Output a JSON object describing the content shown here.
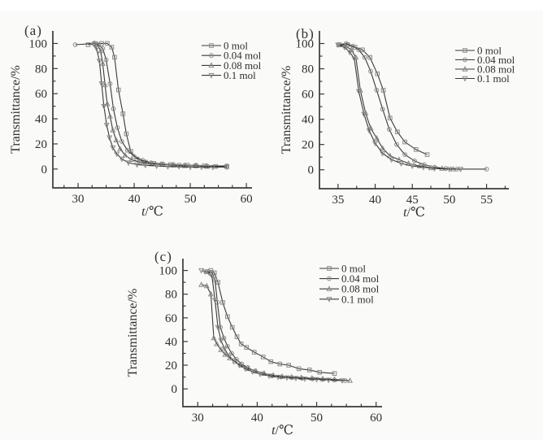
{
  "figure": {
    "background": "#fafaf9",
    "line_color": "#3a3a3a",
    "marker_color": "#8a8a8a",
    "text_color": "#2f2f2f"
  },
  "chart_data": [
    {
      "id": "a",
      "panel_label": "(a)",
      "type": "line",
      "title": "",
      "xlabel": {
        "italic": "t",
        "rest": "/℃"
      },
      "ylabel": "Transmittance/%",
      "xlim": [
        25.5,
        61
      ],
      "ylim": [
        -15,
        110
      ],
      "xticks": [
        30,
        40,
        50,
        60
      ],
      "xminor": [
        27.5,
        32.5,
        35,
        37.5,
        42.5,
        45,
        47.5,
        52.5,
        55,
        57.5
      ],
      "yticks": [
        0,
        20,
        40,
        60,
        80,
        100
      ],
      "yminor": [
        10,
        30,
        50,
        70,
        90
      ],
      "grid": false,
      "legend_position": "top-right",
      "series": [
        {
          "name": "0 mol",
          "marker": "square",
          "points": [
            [
              31.8,
              99
            ],
            [
              33.0,
              100
            ],
            [
              34.2,
              100
            ],
            [
              35.2,
              100
            ],
            [
              36.0,
              97
            ],
            [
              36.5,
              89
            ],
            [
              37.2,
              63
            ],
            [
              38.0,
              44
            ],
            [
              38.6,
              28
            ],
            [
              39.4,
              14
            ],
            [
              40.5,
              8
            ],
            [
              42.0,
              5.5
            ],
            [
              43.5,
              4.5
            ],
            [
              45.0,
              4
            ],
            [
              46.5,
              3.5
            ],
            [
              48.0,
              3
            ],
            [
              49.5,
              3
            ],
            [
              51.0,
              2.5
            ],
            [
              52.5,
              2.5
            ],
            [
              54.5,
              2
            ],
            [
              56.5,
              2
            ]
          ]
        },
        {
          "name": "0.04 mol",
          "marker": "circle",
          "points": [
            [
              29.5,
              99
            ],
            [
              32.8,
              100
            ],
            [
              33.6,
              99
            ],
            [
              34.4,
              96
            ],
            [
              35.0,
              87
            ],
            [
              35.7,
              68
            ],
            [
              36.3,
              48
            ],
            [
              37.0,
              33
            ],
            [
              37.8,
              22
            ],
            [
              38.8,
              15
            ],
            [
              40.0,
              10
            ],
            [
              41.5,
              7
            ],
            [
              43.0,
              5
            ],
            [
              45.0,
              4
            ],
            [
              47.0,
              3.5
            ],
            [
              49.0,
              3
            ],
            [
              51.0,
              3
            ],
            [
              53.0,
              2.5
            ],
            [
              56.5,
              2.5
            ]
          ]
        },
        {
          "name": "0.08 mol",
          "marker": "triangle-up",
          "points": [
            [
              32.9,
              100
            ],
            [
              33.5,
              99
            ],
            [
              34.0,
              94
            ],
            [
              34.4,
              84
            ],
            [
              34.8,
              67
            ],
            [
              35.2,
              52
            ],
            [
              35.7,
              42
            ],
            [
              36.2,
              31
            ],
            [
              36.8,
              23
            ],
            [
              37.5,
              16
            ],
            [
              38.4,
              11
            ],
            [
              39.5,
              7.5
            ],
            [
              41.0,
              5.5
            ],
            [
              43.0,
              4
            ],
            [
              45.0,
              3.5
            ],
            [
              47.0,
              3
            ],
            [
              49.0,
              2.5
            ],
            [
              51.0,
              2.5
            ],
            [
              53.0,
              2
            ],
            [
              56.5,
              2
            ]
          ]
        },
        {
          "name": "0.1 mol",
          "marker": "triangle-down",
          "points": [
            [
              32.9,
              99
            ],
            [
              33.3,
              96
            ],
            [
              33.8,
              86
            ],
            [
              34.2,
              68
            ],
            [
              34.6,
              50
            ],
            [
              35.1,
              35
            ],
            [
              35.6,
              25
            ],
            [
              36.2,
              17
            ],
            [
              36.9,
              12
            ],
            [
              37.8,
              8
            ],
            [
              39.0,
              5
            ],
            [
              40.5,
              3.5
            ],
            [
              42.0,
              3
            ],
            [
              44.0,
              2.5
            ],
            [
              46.0,
              2
            ],
            [
              48.0,
              2
            ],
            [
              50.0,
              1.5
            ],
            [
              52.0,
              1.5
            ],
            [
              54.0,
              1.5
            ],
            [
              56.5,
              1.5
            ]
          ]
        }
      ]
    },
    {
      "id": "b",
      "panel_label": "(b)",
      "type": "line",
      "title": "",
      "xlabel": {
        "italic": "t",
        "rest": "/℃"
      },
      "ylabel": "Transmittance/%",
      "xlim": [
        32.5,
        58
      ],
      "ylim": [
        -15,
        110
      ],
      "xticks": [
        35,
        40,
        45,
        50,
        55
      ],
      "xminor": [
        37.5,
        42.5,
        47.5,
        52.5,
        57.5
      ],
      "yticks": [
        0,
        20,
        40,
        60,
        80,
        100
      ],
      "yminor": [
        10,
        30,
        50,
        70,
        90
      ],
      "grid": false,
      "legend_position": "top-right",
      "series": [
        {
          "name": "0 mol",
          "marker": "square",
          "points": [
            [
              35.2,
              99
            ],
            [
              36.3,
              99
            ],
            [
              37.3,
              97
            ],
            [
              38.3,
              95
            ],
            [
              39.3,
              89
            ],
            [
              40.3,
              76
            ],
            [
              41.1,
              63
            ],
            [
              42.0,
              41
            ],
            [
              43.0,
              30
            ],
            [
              44.0,
              22
            ],
            [
              45.5,
              16
            ],
            [
              47.0,
              12
            ]
          ]
        },
        {
          "name": "0.04 mol",
          "marker": "circle",
          "points": [
            [
              35.1,
              99
            ],
            [
              36.1,
              100
            ],
            [
              37.0,
              98
            ],
            [
              37.8,
              95
            ],
            [
              38.6,
              89
            ],
            [
              39.4,
              78
            ],
            [
              40.2,
              63
            ],
            [
              41.0,
              48
            ],
            [
              41.9,
              32
            ],
            [
              42.9,
              20
            ],
            [
              44.0,
              12
            ],
            [
              45.3,
              7
            ],
            [
              46.6,
              4
            ],
            [
              48.0,
              2
            ],
            [
              49.5,
              1
            ],
            [
              51.0,
              0.5
            ],
            [
              55.0,
              0.5
            ]
          ]
        },
        {
          "name": "0.08 mol",
          "marker": "triangle-up",
          "points": [
            [
              35.1,
              99
            ],
            [
              36.0,
              98
            ],
            [
              36.8,
              95
            ],
            [
              37.4,
              89
            ],
            [
              38.0,
              63
            ],
            [
              38.7,
              45
            ],
            [
              39.4,
              33
            ],
            [
              40.2,
              25
            ],
            [
              41.0,
              17
            ],
            [
              42.0,
              11
            ],
            [
              43.2,
              8
            ],
            [
              44.5,
              5
            ],
            [
              46.0,
              3
            ],
            [
              47.5,
              1.5
            ],
            [
              49.0,
              1
            ],
            [
              50.5,
              0.5
            ]
          ]
        },
        {
          "name": "0.1 mol",
          "marker": "triangle-down",
          "points": [
            [
              35.0,
              99
            ],
            [
              35.9,
              97
            ],
            [
              36.6,
              93
            ],
            [
              37.2,
              88
            ],
            [
              37.8,
              62
            ],
            [
              38.5,
              44
            ],
            [
              39.2,
              31
            ],
            [
              40.0,
              21
            ],
            [
              41.0,
              13
            ],
            [
              42.2,
              8
            ],
            [
              43.5,
              5
            ],
            [
              45.0,
              3
            ],
            [
              46.5,
              2
            ],
            [
              48.0,
              1
            ],
            [
              50.0,
              0.5
            ],
            [
              51.5,
              0.5
            ]
          ]
        }
      ]
    },
    {
      "id": "c",
      "panel_label": "(c)",
      "type": "line",
      "title": "",
      "xlabel": {
        "italic": "t",
        "rest": "/℃"
      },
      "ylabel": "Transmittance/%",
      "xlim": [
        27.5,
        61
      ],
      "ylim": [
        -15,
        110
      ],
      "xticks": [
        30,
        40,
        50,
        60
      ],
      "xminor": [
        32.5,
        35,
        37.5,
        42.5,
        45,
        47.5,
        52.5,
        55,
        57.5
      ],
      "yticks": [
        0,
        20,
        40,
        60,
        80,
        100
      ],
      "yminor": [
        10,
        30,
        50,
        70,
        90
      ],
      "grid": false,
      "legend_position": "top-right",
      "series": [
        {
          "name": "0 mol",
          "marker": "square",
          "points": [
            [
              31.6,
              99
            ],
            [
              32.2,
              100
            ],
            [
              32.8,
              98
            ],
            [
              33.4,
              90
            ],
            [
              34.2,
              73
            ],
            [
              35.0,
              61
            ],
            [
              35.8,
              52
            ],
            [
              36.6,
              44
            ],
            [
              37.3,
              38
            ],
            [
              38.2,
              35
            ],
            [
              39.5,
              31
            ],
            [
              41.0,
              27
            ],
            [
              42.3,
              23
            ],
            [
              43.8,
              21
            ],
            [
              45.3,
              20
            ],
            [
              47.0,
              17
            ],
            [
              48.8,
              16
            ],
            [
              50.5,
              14
            ],
            [
              53.0,
              13
            ]
          ]
        },
        {
          "name": "0.04 mol",
          "marker": "circle",
          "points": [
            [
              31.8,
              99
            ],
            [
              32.4,
              98
            ],
            [
              32.9,
              92
            ],
            [
              33.3,
              73
            ],
            [
              33.8,
              52
            ],
            [
              34.4,
              43
            ],
            [
              35.0,
              36
            ],
            [
              35.7,
              30
            ],
            [
              36.5,
              25
            ],
            [
              37.4,
              21
            ],
            [
              38.4,
              18
            ],
            [
              39.6,
              15
            ],
            [
              41.0,
              13
            ],
            [
              42.5,
              11
            ],
            [
              44.0,
              10
            ],
            [
              45.8,
              9.5
            ],
            [
              47.5,
              9
            ],
            [
              49.3,
              8.5
            ],
            [
              51.0,
              8
            ],
            [
              53.0,
              7.5
            ],
            [
              54.8,
              7
            ]
          ]
        },
        {
          "name": "0.08 mol",
          "marker": "triangle-up",
          "points": [
            [
              30.6,
              88
            ],
            [
              31.5,
              87
            ],
            [
              32.2,
              80
            ],
            [
              32.7,
              43
            ],
            [
              33.2,
              38
            ],
            [
              33.9,
              33
            ],
            [
              34.6,
              29
            ],
            [
              35.4,
              26
            ],
            [
              36.3,
              23
            ],
            [
              37.3,
              20
            ],
            [
              38.5,
              17
            ],
            [
              39.8,
              15
            ],
            [
              41.2,
              13
            ],
            [
              42.7,
              11.5
            ],
            [
              44.2,
              10.5
            ],
            [
              45.8,
              10
            ],
            [
              47.4,
              9.5
            ],
            [
              49.2,
              9
            ],
            [
              51.0,
              8.5
            ],
            [
              53.0,
              8
            ],
            [
              55.6,
              7
            ]
          ]
        },
        {
          "name": "0.1 mol",
          "marker": "triangle-down",
          "points": [
            [
              30.6,
              100
            ],
            [
              31.2,
              99
            ],
            [
              31.9,
              98
            ],
            [
              32.4,
              95
            ],
            [
              32.9,
              75
            ],
            [
              33.4,
              52
            ],
            [
              33.9,
              41
            ],
            [
              34.5,
              34
            ],
            [
              35.2,
              28
            ],
            [
              36.0,
              24
            ],
            [
              37.0,
              20
            ],
            [
              38.0,
              17
            ],
            [
              39.2,
              14.5
            ],
            [
              40.5,
              12.5
            ],
            [
              42.0,
              11
            ],
            [
              43.5,
              10
            ],
            [
              45.0,
              9.5
            ],
            [
              46.5,
              9
            ],
            [
              48.0,
              8.5
            ],
            [
              50.0,
              8
            ],
            [
              52.0,
              7.5
            ],
            [
              54.3,
              7
            ]
          ]
        }
      ]
    }
  ]
}
